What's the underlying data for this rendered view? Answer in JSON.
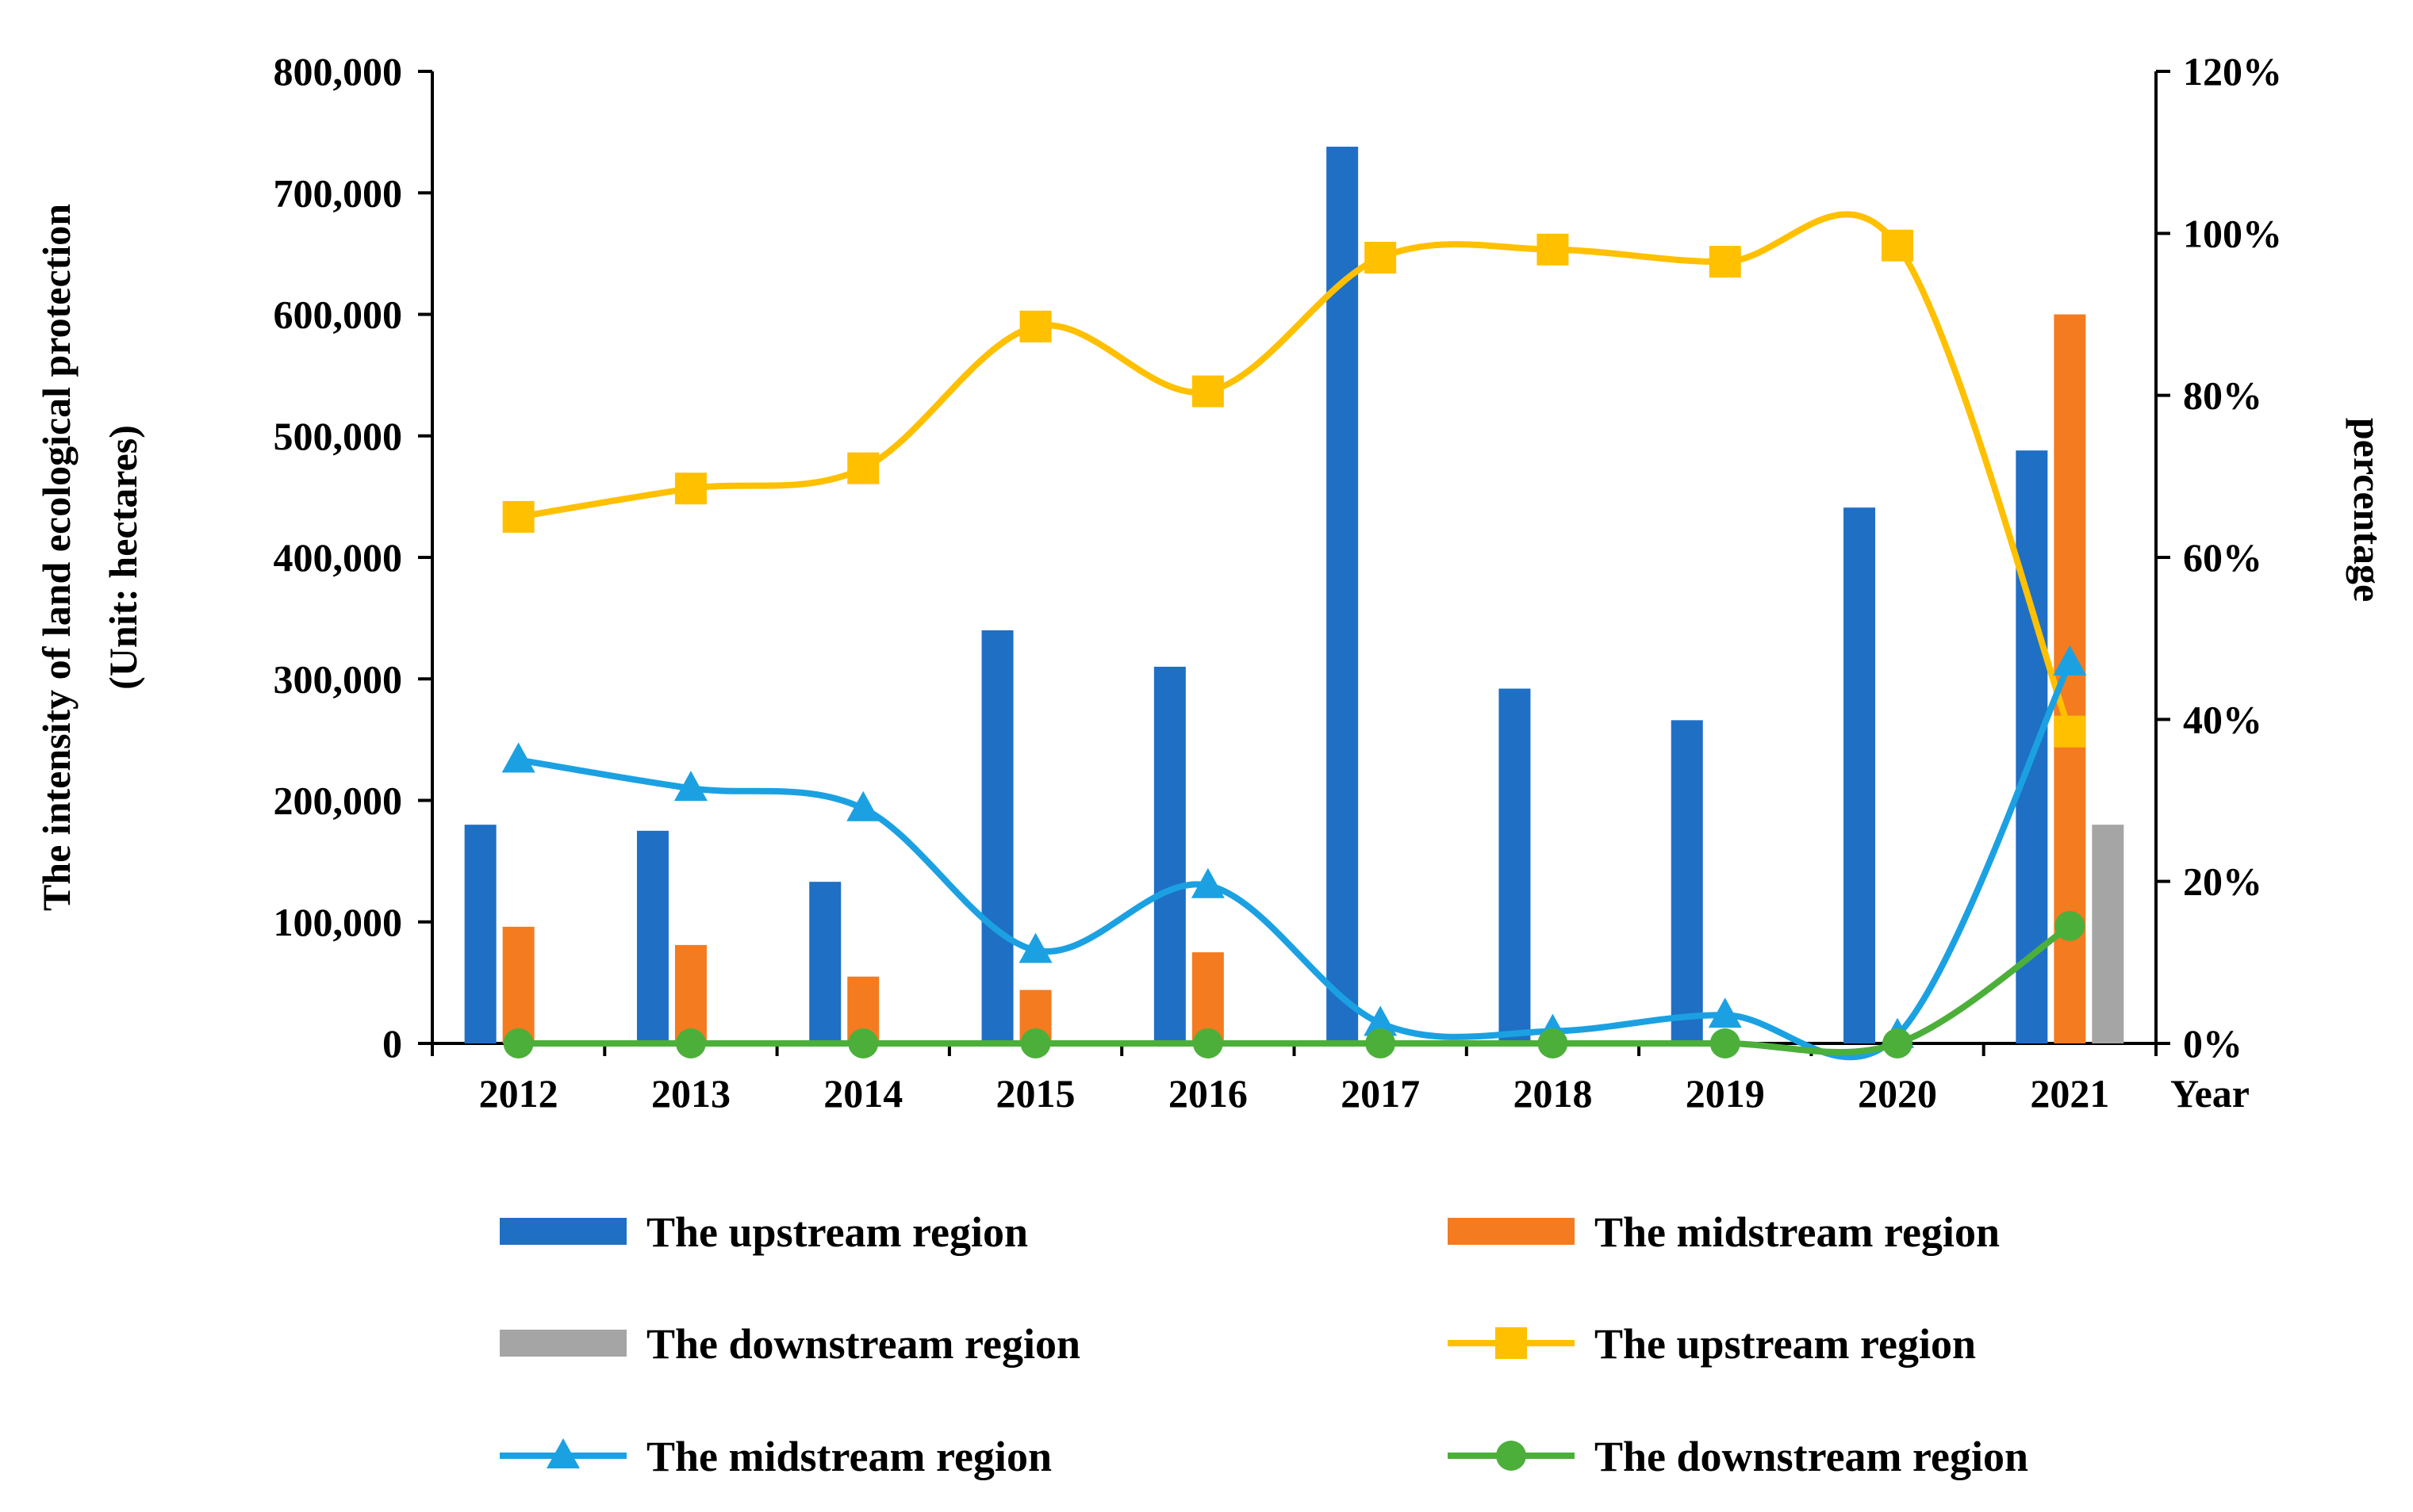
{
  "chart_data": {
    "type": "bar",
    "categories": [
      "2012",
      "2013",
      "2014",
      "2015",
      "2016",
      "2017",
      "2018",
      "2019",
      "2020",
      "2021"
    ],
    "x_axis_label": "Year",
    "left_axis": {
      "title_line1": "The intensity of land ecological protection",
      "title_line2": "(Unit: hectares)",
      "ylim": [
        0,
        800000
      ],
      "tick_values": [
        0,
        100000,
        200000,
        300000,
        400000,
        500000,
        600000,
        700000,
        800000
      ],
      "tick_labels": [
        "0",
        "100,000",
        "200,000",
        "300,000",
        "400,000",
        "500,000",
        "600,000",
        "700,000",
        "800,000"
      ]
    },
    "right_axis": {
      "title": "percentage",
      "ylim": [
        0,
        1.2
      ],
      "tick_values": [
        0,
        0.2,
        0.4,
        0.6,
        0.8,
        1.0,
        1.2
      ],
      "tick_labels": [
        "0%",
        "20%",
        "40%",
        "60%",
        "80%",
        "100%",
        "120%"
      ]
    },
    "bar_series": [
      {
        "name": "The upstream region",
        "color": "#1F6FC5",
        "values": [
          180000,
          175000,
          133000,
          340000,
          310000,
          738000,
          292000,
          266000,
          441000,
          488000
        ]
      },
      {
        "name": "The midstream region",
        "color": "#F47B20",
        "values": [
          96000,
          81000,
          55000,
          44000,
          75000,
          0,
          0,
          0,
          0,
          600000
        ]
      },
      {
        "name": "The downstream region",
        "color": "#A5A5A5",
        "values": [
          0,
          0,
          0,
          0,
          0,
          0,
          0,
          0,
          0,
          180000
        ]
      }
    ],
    "line_series": [
      {
        "name": "The upstream region",
        "color": "#FFC000",
        "marker": "square",
        "values": [
          0.65,
          0.685,
          0.71,
          0.885,
          0.805,
          0.97,
          0.98,
          0.965,
          0.985,
          0.385
        ]
      },
      {
        "name": "The midstream region",
        "color": "#1BA1E2",
        "marker": "triangle",
        "values": [
          0.35,
          0.315,
          0.29,
          0.115,
          0.195,
          0.025,
          0.015,
          0.035,
          0.01,
          0.47
        ]
      },
      {
        "name": "The downstream region",
        "color": "#4CAF3A",
        "marker": "circle",
        "values": [
          0,
          0,
          0,
          0,
          0,
          0,
          0,
          0,
          0,
          0.145
        ]
      }
    ],
    "legend_position": "bottom"
  }
}
